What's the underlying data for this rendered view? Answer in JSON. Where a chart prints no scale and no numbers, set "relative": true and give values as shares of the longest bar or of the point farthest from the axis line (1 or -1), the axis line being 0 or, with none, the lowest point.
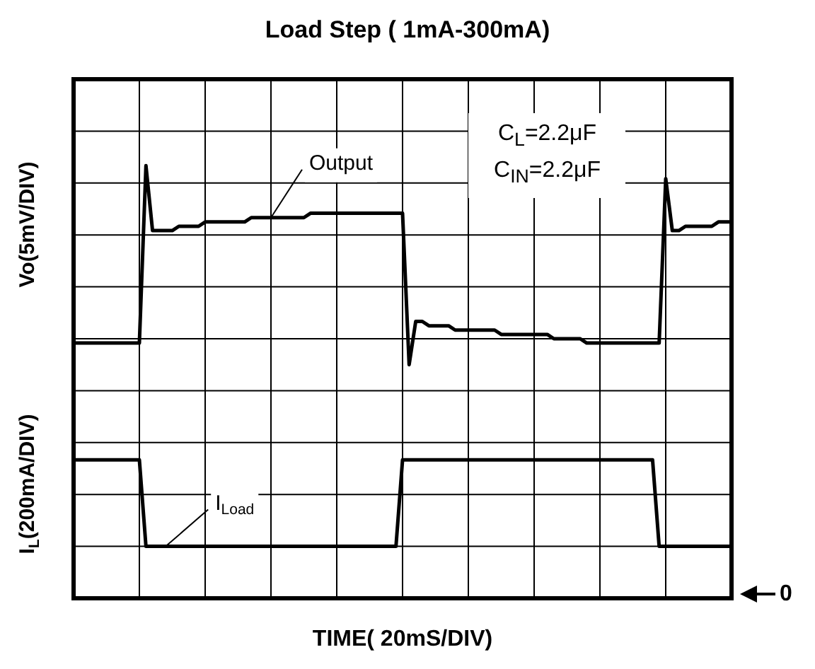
{
  "chart_data": {
    "type": "line",
    "relative": true,
    "title": "Load Step ( 1mA-300mA)",
    "xlabel": "TIME( 20mS/DIV)",
    "ylabel": "Vo(5mV/DIV)",
    "annotations": [
      "I$_{L}$(200mA/DIV)",
      "C$_{L}$=2.2μF",
      "C$_{IN}$=2.2μF",
      "0"
    ],
    "grid": true,
    "marker": "none",
    "line_style": "solid",
    "categories": [
      null,
      null,
      null,
      null,
      null,
      null,
      null,
      null,
      null,
      null,
      null,
      null,
      null,
      null,
      null,
      null,
      null,
      null,
      null,
      null,
      null,
      null,
      null,
      null,
      null,
      null,
      null,
      null,
      null,
      null,
      null,
      null,
      null,
      null,
      null,
      null,
      null,
      null,
      null,
      null,
      null,
      null,
      null,
      null,
      null,
      null,
      null,
      null,
      null,
      null,
      null,
      null,
      null,
      null,
      null,
      null,
      null,
      null,
      null,
      null,
      null,
      null,
      null,
      null,
      null,
      null,
      null,
      null,
      null,
      null,
      null,
      null,
      null,
      null,
      null,
      null,
      null,
      null,
      null,
      null,
      null,
      null,
      null,
      null,
      null,
      null,
      null,
      null,
      null,
      null,
      null,
      null,
      null,
      null,
      null,
      null,
      null,
      null,
      null,
      null,
      null
    ],
    "series": [
      {
        "name": "Output",
        "color": "#000000",
        "values": [
          0.59,
          0.59,
          0.59,
          0.59,
          0.59,
          0.59,
          0.59,
          0.59,
          0.59,
          0.59,
          0.59,
          1,
          0.85,
          0.85,
          0.85,
          0.85,
          0.86,
          0.86,
          0.86,
          0.86,
          0.87,
          0.87,
          0.87,
          0.87,
          0.87,
          0.87,
          0.87,
          0.88,
          0.88,
          0.88,
          0.88,
          0.88,
          0.88,
          0.88,
          0.88,
          0.88,
          0.89,
          0.89,
          0.89,
          0.89,
          0.89,
          0.89,
          0.89,
          0.89,
          0.89,
          0.89,
          0.89,
          0.89,
          0.89,
          0.89,
          0.89,
          0.54,
          0.64,
          0.64,
          0.63,
          0.63,
          0.63,
          0.63,
          0.62,
          0.62,
          0.62,
          0.62,
          0.62,
          0.62,
          0.62,
          0.61,
          0.61,
          0.61,
          0.61,
          0.61,
          0.61,
          0.61,
          0.61,
          0.6,
          0.6,
          0.6,
          0.6,
          0.6,
          0.59,
          0.59,
          0.59,
          0.59,
          0.59,
          0.59,
          0.59,
          0.59,
          0.59,
          0.59,
          0.59,
          0.59,
          0.97,
          0.85,
          0.85,
          0.86,
          0.86,
          0.86,
          0.86,
          0.86,
          0.87,
          0.87,
          0.87
        ]
      },
      {
        "name": "I$_{Load}$",
        "color": "#000000",
        "values": [
          0.32,
          0.32,
          0.32,
          0.32,
          0.32,
          0.32,
          0.32,
          0.32,
          0.32,
          0.32,
          0.32,
          0.12,
          0.12,
          0.12,
          0.12,
          0.12,
          0.12,
          0.12,
          0.12,
          0.12,
          0.12,
          0.12,
          0.12,
          0.12,
          0.12,
          0.12,
          0.12,
          0.12,
          0.12,
          0.12,
          0.12,
          0.12,
          0.12,
          0.12,
          0.12,
          0.12,
          0.12,
          0.12,
          0.12,
          0.12,
          0.12,
          0.12,
          0.12,
          0.12,
          0.12,
          0.12,
          0.12,
          0.12,
          0.12,
          0.12,
          0.32,
          0.32,
          0.32,
          0.32,
          0.32,
          0.32,
          0.32,
          0.32,
          0.32,
          0.32,
          0.32,
          0.32,
          0.32,
          0.32,
          0.32,
          0.32,
          0.32,
          0.32,
          0.32,
          0.32,
          0.32,
          0.32,
          0.32,
          0.32,
          0.32,
          0.32,
          0.32,
          0.32,
          0.32,
          0.32,
          0.32,
          0.32,
          0.32,
          0.32,
          0.32,
          0.32,
          0.32,
          0.32,
          0.32,
          0.12,
          0.12,
          0.12,
          0.12,
          0.12,
          0.12,
          0.12,
          0.12,
          0.12,
          0.12,
          0.12,
          0.12
        ]
      }
    ]
  }
}
